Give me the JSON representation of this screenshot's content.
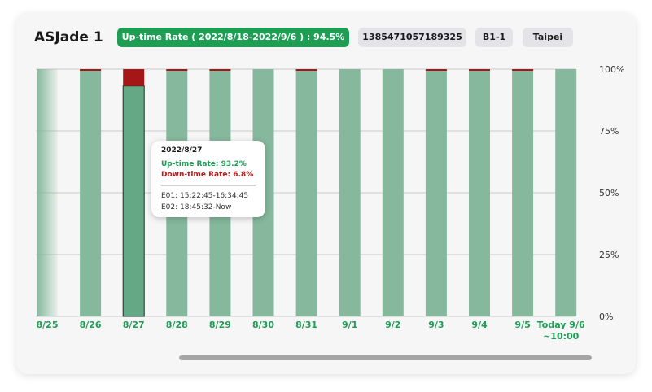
{
  "header": {
    "title": "ASJade 1",
    "uptime_summary": "Up-time Rate ( 2022/8/18-2022/9/6 ) : 94.5%",
    "device_id": "1385471057189325",
    "zone": "B1-1",
    "city": "Taipei"
  },
  "colors": {
    "uptime": "#85b89d",
    "uptime_selected": "#64a985",
    "downtime": "#a61616",
    "label_green": "#1f9d55",
    "summary_pill": "#1f9d55"
  },
  "tooltip": {
    "date": "2022/8/27",
    "uptime": "Up-time Rate: 93.2%",
    "downtime": "Down-time Rate: 6.8%",
    "events": [
      "E01: 15:22:45-16:34:45",
      "E02: 18:45:32-Now"
    ]
  },
  "chart_data": {
    "type": "bar",
    "stacked": true,
    "categories": [
      "8/25",
      "8/26",
      "8/27",
      "8/28",
      "8/29",
      "8/30",
      "8/31",
      "9/1",
      "9/2",
      "9/3",
      "9/4",
      "9/5",
      "Today 9/6\n~10:00"
    ],
    "series": [
      {
        "key": "uptime",
        "values": [
          100,
          99.5,
          93.2,
          99.5,
          99.5,
          100,
          99.5,
          100,
          100,
          99.5,
          99.5,
          99.5,
          100
        ]
      },
      {
        "key": "downtime",
        "values": [
          0,
          0.5,
          6.8,
          0.5,
          0.5,
          0,
          0.5,
          0,
          0,
          0.5,
          0.5,
          0.5,
          0
        ]
      }
    ],
    "yticks": [
      "0%",
      "25%",
      "50%",
      "75%",
      "100%"
    ],
    "ylim": [
      0,
      100
    ],
    "y_axis_side": "right",
    "grid": true,
    "selected_category": "8/27"
  }
}
